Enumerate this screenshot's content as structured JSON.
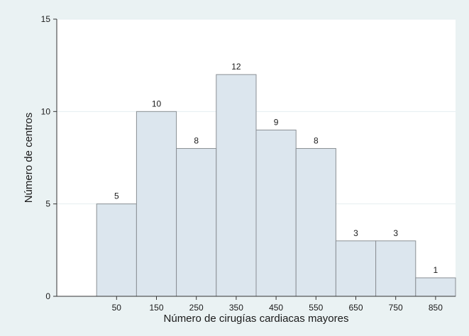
{
  "chart_data": {
    "type": "bar",
    "title": "",
    "xlabel": "Número de cirugías cardiacas mayores",
    "ylabel": "Número de centros",
    "categories": [
      "50",
      "150",
      "250",
      "350",
      "450",
      "550",
      "650",
      "750",
      "850"
    ],
    "x": [
      50,
      150,
      250,
      350,
      450,
      550,
      650,
      750,
      850
    ],
    "bin_width": 100,
    "values": [
      5,
      10,
      8,
      12,
      9,
      8,
      3,
      3,
      1
    ],
    "data_labels": [
      "5",
      "10",
      "8",
      "12",
      "9",
      "8",
      "3",
      "3",
      "1"
    ],
    "y_ticks": [
      0,
      5,
      10,
      15
    ],
    "y_tick_labels": [
      "0",
      "5",
      "10",
      "15"
    ],
    "ylim": [
      0,
      15
    ],
    "xlim": [
      -100,
      900
    ],
    "grid": "horizontal",
    "legend": "none",
    "colors": {
      "outer_background": "#eaf2f3",
      "plot_background": "#ffffff",
      "bar_fill": "#dce6ee",
      "bar_stroke": "#8a8f94",
      "grid": "#e4eef0",
      "axis": "#333333"
    }
  }
}
